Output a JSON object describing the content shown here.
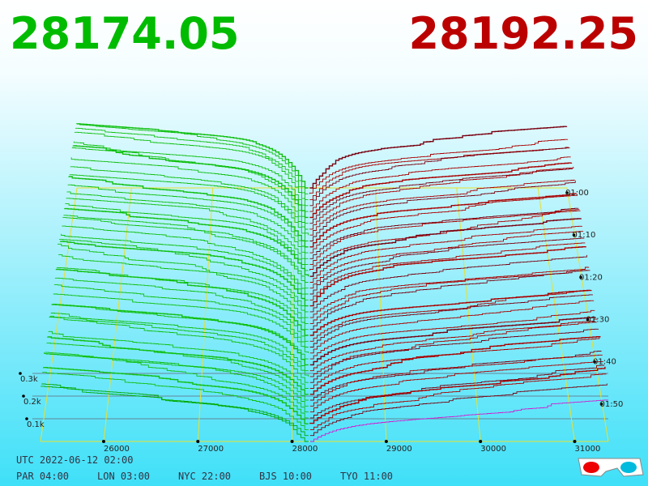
{
  "header": {
    "bid_price": "28174.05",
    "ask_price": "28192.25"
  },
  "price_axis": {
    "ticks": [
      26000,
      27000,
      28000,
      29000,
      30000,
      31000
    ]
  },
  "depth_axis": {
    "ticks": [
      {
        "value": 300,
        "label": "0.3k"
      },
      {
        "value": 200,
        "label": "0.2k"
      },
      {
        "value": 100,
        "label": "0.1k"
      }
    ]
  },
  "time_axis": {
    "ticks": [
      "01:00",
      "01:10",
      "01:20",
      "01:30",
      "01:40",
      "01:50"
    ]
  },
  "clock": {
    "utc": "UTC 2022-06-12 02:00",
    "zones": [
      "PAR 04:00",
      "LON 03:00",
      "NYC 22:00",
      "BJS 10:00",
      "TYO 11:00"
    ]
  }
}
